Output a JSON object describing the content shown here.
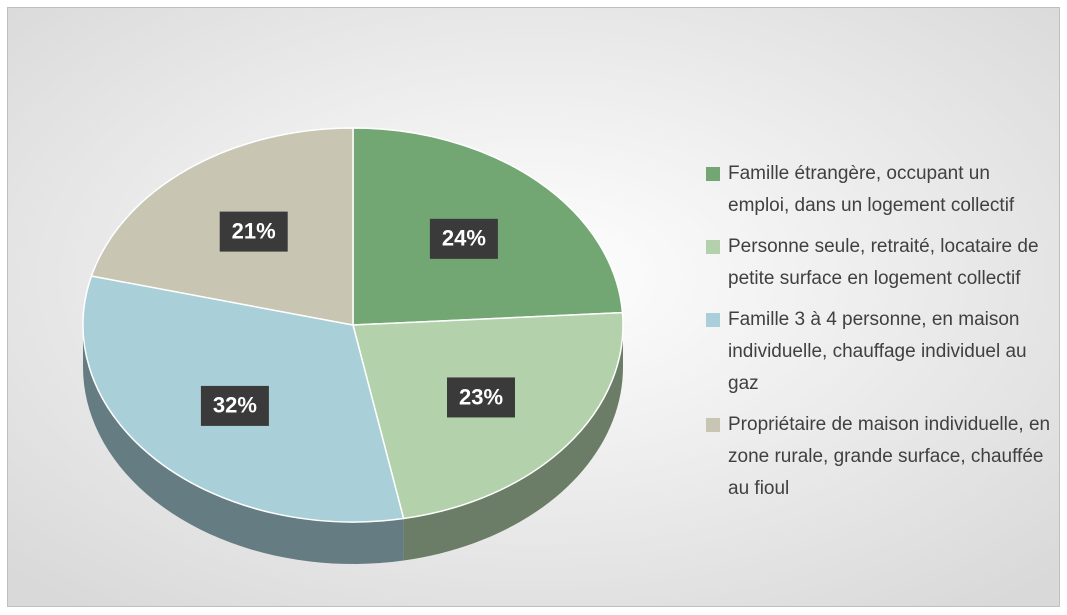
{
  "chart_data": {
    "type": "pie",
    "categories": [
      "Famille étrangère, occupant un emploi, dans un logement collectif",
      "Personne seule, retraité, locataire de petite surface en logement collectif",
      "Famille 3 à 4 personne, en maison individuelle, chauffage individuel au gaz",
      "Propriétaire de maison individuelle, en zone rurale, grande surface, chauffée au fioul"
    ],
    "values": [
      24,
      23,
      32,
      21
    ],
    "value_labels": [
      "24%",
      "23%",
      "32%",
      "21%"
    ],
    "colors": [
      "#72a672",
      "#b3d1aa",
      "#a9cfd9",
      "#c9c5b3"
    ],
    "legend": "right"
  }
}
